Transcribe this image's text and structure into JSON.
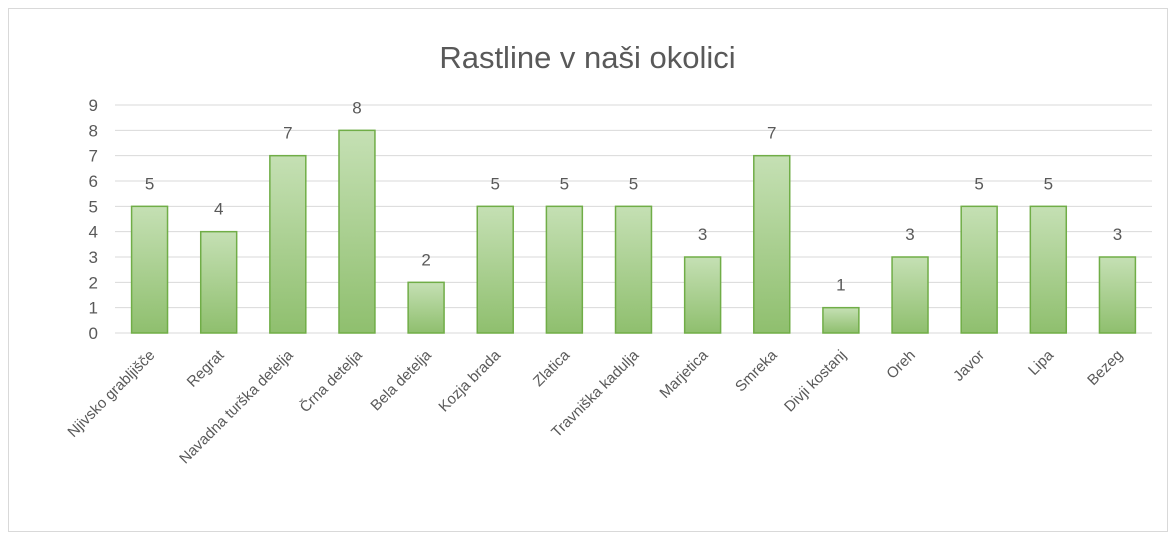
{
  "chart_data": {
    "type": "bar",
    "title": "Rastline v naši okolici",
    "categories": [
      "Njivsko grabljišče",
      "Regrat",
      "Navadna turška detelja",
      "Črna detelja",
      "Bela detelja",
      "Kozja brada",
      "Zlatica",
      "Travniška kadulja",
      "Marjetica",
      "Smreka",
      "Divji kostanj",
      "Oreh",
      "Javor",
      "Lipa",
      "Bezeg"
    ],
    "values": [
      5,
      4,
      7,
      8,
      2,
      5,
      5,
      5,
      3,
      7,
      1,
      3,
      5,
      5,
      3
    ],
    "ylim": [
      0,
      9
    ],
    "yticks": [
      "0",
      "1",
      "2",
      "3",
      "4",
      "5",
      "6",
      "7",
      "8",
      "9"
    ],
    "grid": true,
    "data_labels": true,
    "colors": {
      "bar_top": "#c5e0b4",
      "bar_bottom": "#8fbf6e",
      "bar_border": "#70ad47",
      "grid": "#d9d9d9",
      "text": "#595959"
    }
  }
}
